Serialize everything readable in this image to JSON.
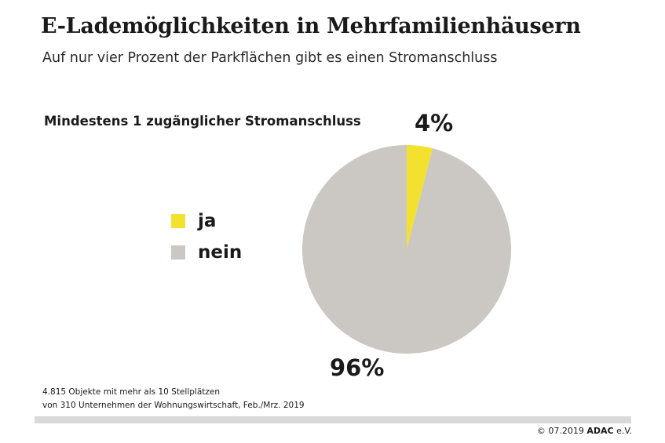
{
  "header": {
    "title": "E-Lademöglichkeiten in Mehrfamilienhäusern",
    "subtitle": "Auf nur vier Prozent der Parkflächen gibt es einen Stromanschluss"
  },
  "chart_data": {
    "type": "pie",
    "title": "Mindestens 1 zugänglicher Stromanschluss",
    "legend_position": "left",
    "slices": [
      {
        "label": "ja",
        "value": 4,
        "value_label": "4%",
        "color": "#f2e12f"
      },
      {
        "label": "nein",
        "value": 96,
        "value_label": "96%",
        "color": "#cbc7c2"
      }
    ]
  },
  "footnote": {
    "line1": "4.815 Objekte mit mehr als 10 Stellplätzen",
    "line2": "von 310 Unternehmen der Wohnungswirtschaft, Feb./Mrz. 2019"
  },
  "footer": {
    "copyright": "© 07.2019",
    "brand": "ADAC",
    "brand_suffix": "e.V."
  }
}
